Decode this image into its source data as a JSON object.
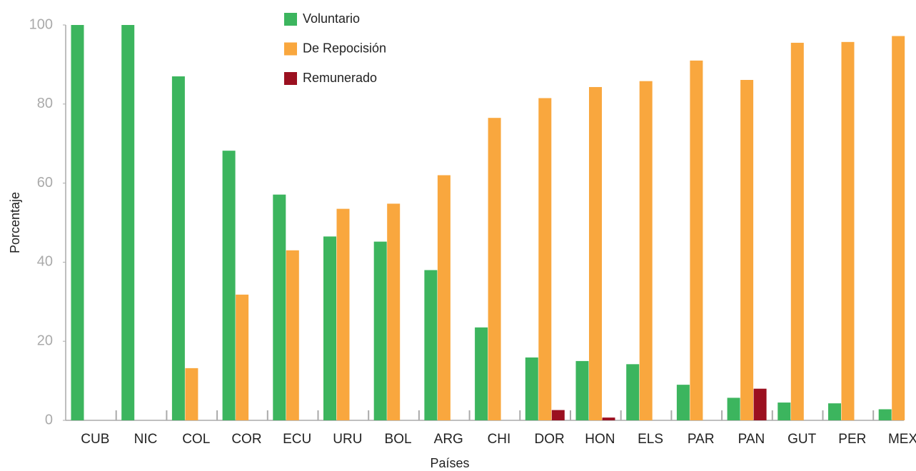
{
  "chart_data": {
    "type": "bar",
    "x_label": "Países",
    "y_label": "Porcentaje",
    "categories": [
      "CUB",
      "NIC",
      "COL",
      "COR",
      "ECU",
      "URU",
      "BOL",
      "ARG",
      "CHI",
      "DOR",
      "HON",
      "ELS",
      "PAR",
      "PAN",
      "GUT",
      "PER",
      "MEX"
    ],
    "series": [
      {
        "name": "Voluntario",
        "color": "#3cb55e",
        "values": [
          100,
          100,
          87,
          68.2,
          57.1,
          46.5,
          45.2,
          38,
          23.5,
          15.9,
          15,
          14.2,
          9,
          5.7,
          4.5,
          4.3,
          2.8
        ]
      },
      {
        "name": "De Repocisión",
        "color": "#f9a73e",
        "values": [
          0,
          0,
          13.2,
          31.8,
          43,
          53.5,
          54.8,
          62,
          76.5,
          81.5,
          84.3,
          85.8,
          91,
          86.1,
          95.5,
          95.7,
          97.2
        ]
      },
      {
        "name": "Remunerado",
        "color": "#9b1020",
        "values": [
          0,
          0,
          0,
          0,
          0,
          0,
          0,
          0,
          0,
          2.6,
          0.7,
          0,
          0,
          8,
          0,
          0,
          0
        ]
      }
    ],
    "ylim": [
      0,
      100
    ],
    "yticks": [
      0,
      20,
      40,
      60,
      80,
      100
    ],
    "grid": false,
    "legend": "top"
  }
}
